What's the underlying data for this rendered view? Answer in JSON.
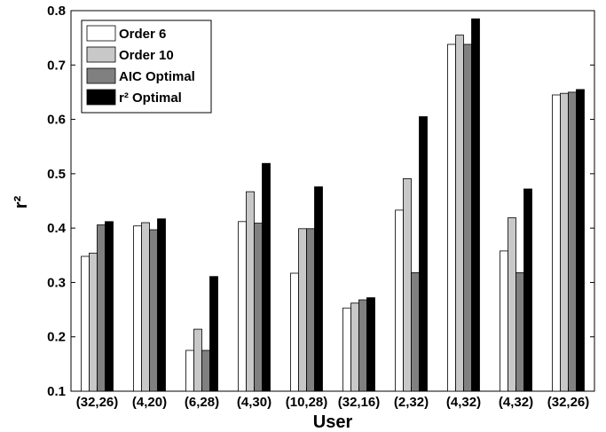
{
  "chart_data": {
    "type": "bar",
    "categories": [
      "(32,26)",
      "(4,20)",
      "(6,28)",
      "(4,30)",
      "(10,28)",
      "(32,16)",
      "(2,32)",
      "(4,32)",
      "(4,32)",
      "(32,26)"
    ],
    "series": [
      {
        "name": "Order 6",
        "color": "#ffffff",
        "values": [
          0.348,
          0.404,
          0.175,
          0.412,
          0.317,
          0.253,
          0.433,
          0.738,
          0.358,
          0.645
        ]
      },
      {
        "name": "Order 10",
        "color": "#c8c8c8",
        "values": [
          0.354,
          0.41,
          0.214,
          0.467,
          0.399,
          0.262,
          0.491,
          0.755,
          0.419,
          0.648
        ]
      },
      {
        "name": "AIC Optimal",
        "color": "#808080",
        "values": [
          0.406,
          0.397,
          0.175,
          0.409,
          0.399,
          0.268,
          0.318,
          0.738,
          0.318,
          0.65
        ]
      },
      {
        "name": "r² Optimal",
        "color": "#000000",
        "values": [
          0.412,
          0.417,
          0.311,
          0.519,
          0.476,
          0.272,
          0.605,
          0.785,
          0.472,
          0.655
        ]
      }
    ],
    "xlabel": "User",
    "ylabel": "r²",
    "ylim": [
      0.1,
      0.8
    ],
    "yticks": [
      "0.1",
      "0.2",
      "0.3",
      "0.4",
      "0.5",
      "0.6",
      "0.7",
      "0.8"
    ],
    "grid": false,
    "legend_position": "top-left"
  }
}
